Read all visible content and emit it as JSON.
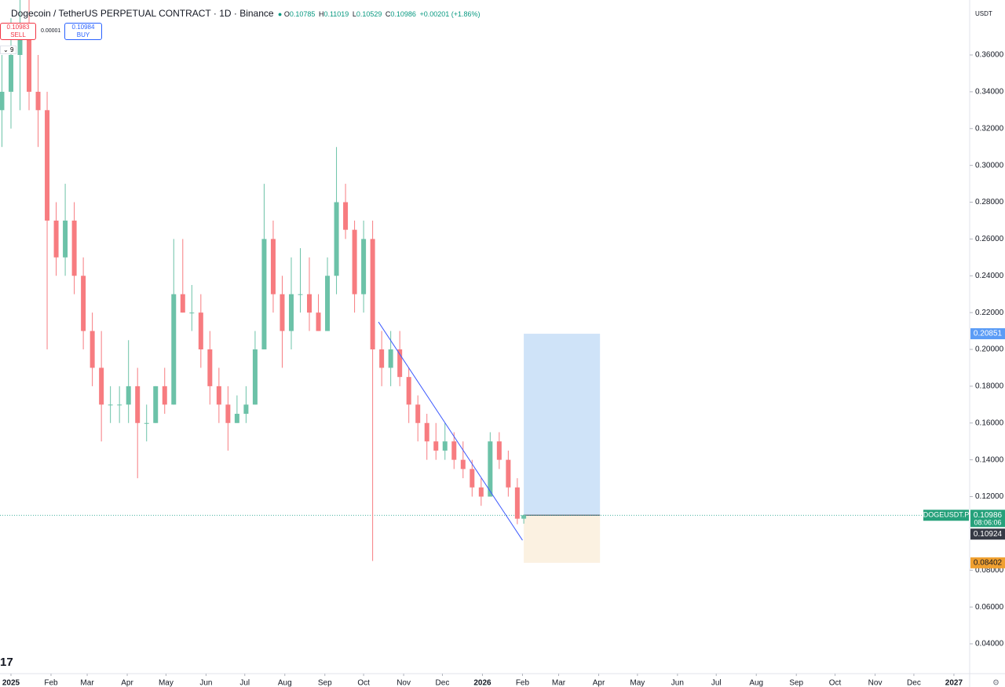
{
  "chart_data": {
    "type": "candlestick",
    "x": [
      -7,
      0,
      7,
      14,
      21,
      28,
      35,
      42,
      49,
      56,
      63,
      70,
      77,
      84,
      91,
      98,
      105,
      112,
      119,
      126,
      133,
      140,
      147,
      154,
      161,
      168,
      175,
      182,
      189,
      196,
      203,
      210,
      217,
      224,
      231,
      238,
      245,
      252,
      259,
      266,
      273,
      280,
      287,
      294,
      301,
      308,
      315,
      322,
      329,
      336,
      343,
      350,
      357,
      364,
      371,
      378,
      385,
      392,
      397
    ],
    "open": [
      0.33,
      0.34,
      0.36,
      0.37,
      0.34,
      0.33,
      0.27,
      0.25,
      0.27,
      0.24,
      0.21,
      0.19,
      0.17,
      0.17,
      0.17,
      0.18,
      0.16,
      0.16,
      0.18,
      0.17,
      0.23,
      0.22,
      0.22,
      0.2,
      0.18,
      0.17,
      0.16,
      0.165,
      0.17,
      0.2,
      0.26,
      0.23,
      0.21,
      0.23,
      0.23,
      0.22,
      0.21,
      0.24,
      0.28,
      0.265,
      0.23,
      0.26,
      0.2,
      0.19,
      0.2,
      0.185,
      0.17,
      0.16,
      0.15,
      0.145,
      0.15,
      0.14,
      0.135,
      0.125,
      0.12,
      0.15,
      0.14,
      0.125,
      0.108
    ],
    "high": [
      0.36,
      0.38,
      0.39,
      0.39,
      0.36,
      0.34,
      0.28,
      0.29,
      0.28,
      0.25,
      0.22,
      0.21,
      0.18,
      0.18,
      0.205,
      0.19,
      0.17,
      0.18,
      0.19,
      0.26,
      0.26,
      0.235,
      0.23,
      0.21,
      0.19,
      0.18,
      0.175,
      0.18,
      0.21,
      0.29,
      0.27,
      0.24,
      0.25,
      0.255,
      0.25,
      0.23,
      0.25,
      0.31,
      0.29,
      0.27,
      0.27,
      0.27,
      0.21,
      0.21,
      0.21,
      0.19,
      0.175,
      0.165,
      0.16,
      0.16,
      0.155,
      0.15,
      0.14,
      0.13,
      0.155,
      0.155,
      0.145,
      0.13,
      0.11019
    ],
    "low": [
      0.31,
      0.32,
      0.33,
      0.33,
      0.31,
      0.2,
      0.24,
      0.24,
      0.23,
      0.2,
      0.18,
      0.15,
      0.16,
      0.16,
      0.16,
      0.13,
      0.15,
      0.16,
      0.165,
      0.17,
      0.22,
      0.21,
      0.19,
      0.17,
      0.16,
      0.145,
      0.16,
      0.16,
      0.17,
      0.2,
      0.22,
      0.19,
      0.2,
      0.22,
      0.21,
      0.21,
      0.21,
      0.23,
      0.26,
      0.22,
      0.22,
      0.085,
      0.18,
      0.18,
      0.18,
      0.16,
      0.15,
      0.14,
      0.14,
      0.14,
      0.135,
      0.13,
      0.12,
      0.115,
      0.12,
      0.135,
      0.12,
      0.105,
      0.10529
    ],
    "close": [
      0.34,
      0.36,
      0.37,
      0.34,
      0.33,
      0.27,
      0.25,
      0.27,
      0.24,
      0.21,
      0.19,
      0.17,
      0.17,
      0.17,
      0.18,
      0.16,
      0.16,
      0.18,
      0.17,
      0.23,
      0.22,
      0.22,
      0.2,
      0.18,
      0.17,
      0.16,
      0.165,
      0.17,
      0.2,
      0.26,
      0.23,
      0.21,
      0.23,
      0.23,
      0.22,
      0.21,
      0.24,
      0.28,
      0.265,
      0.23,
      0.26,
      0.2,
      0.19,
      0.2,
      0.185,
      0.17,
      0.16,
      0.15,
      0.145,
      0.15,
      0.14,
      0.135,
      0.125,
      0.12,
      0.15,
      0.14,
      0.125,
      0.108,
      0.10986
    ],
    "up_color": "#6cc2a8",
    "down_color": "#f77c80",
    "xlim": [
      -8.5,
      742.2
    ],
    "ylim": [
      0.02379,
      0.38987
    ],
    "xticks": [
      {
        "value": 0,
        "label": "2025"
      },
      {
        "value": 31,
        "label": "Feb"
      },
      {
        "value": 59,
        "label": "Mar"
      },
      {
        "value": 90,
        "label": "Apr"
      },
      {
        "value": 120,
        "label": "May"
      },
      {
        "value": 151,
        "label": "Jun"
      },
      {
        "value": 181,
        "label": "Jul"
      },
      {
        "value": 212,
        "label": "Aug"
      },
      {
        "value": 243,
        "label": "Sep"
      },
      {
        "value": 273,
        "label": "Oct"
      },
      {
        "value": 304,
        "label": "Nov"
      },
      {
        "value": 334,
        "label": "Dec"
      },
      {
        "value": 365,
        "label": "2026"
      },
      {
        "value": 396,
        "label": "Feb"
      },
      {
        "value": 424,
        "label": "Mar"
      },
      {
        "value": 455,
        "label": "Apr"
      },
      {
        "value": 485,
        "label": "May"
      },
      {
        "value": 516,
        "label": "Jun"
      },
      {
        "value": 546,
        "label": "Jul"
      },
      {
        "value": 577,
        "label": "Aug"
      },
      {
        "value": 608,
        "label": "Sep"
      },
      {
        "value": 638,
        "label": "Oct"
      },
      {
        "value": 669,
        "label": "Nov"
      },
      {
        "value": 699,
        "label": "Dec"
      },
      {
        "value": 730,
        "label": "2027"
      }
    ],
    "yticks": [
      {
        "value": 0.04,
        "label": "0.04000"
      },
      {
        "value": 0.06,
        "label": "0.06000"
      },
      {
        "value": 0.08,
        "label": "0.08000"
      },
      {
        "value": 0.12,
        "label": "0.12000"
      },
      {
        "value": 0.14,
        "label": "0.14000"
      },
      {
        "value": 0.16,
        "label": "0.16000"
      },
      {
        "value": 0.18,
        "label": "0.18000"
      },
      {
        "value": 0.2,
        "label": "0.20000"
      },
      {
        "value": 0.22,
        "label": "0.22000"
      },
      {
        "value": 0.24,
        "label": "0.24000"
      },
      {
        "value": 0.26,
        "label": "0.26000"
      },
      {
        "value": 0.28,
        "label": "0.28000"
      },
      {
        "value": 0.3,
        "label": "0.30000"
      },
      {
        "value": 0.32,
        "label": "0.32000"
      },
      {
        "value": 0.34,
        "label": "0.34000"
      },
      {
        "value": 0.36,
        "label": "0.36000"
      }
    ],
    "trendline": {
      "x": [
        284.5,
        396
      ],
      "y": [
        0.2149,
        0.0963
      ],
      "color": "#3d5afe"
    },
    "position": {
      "x": [
        397,
        456
      ],
      "entry": 0.10986,
      "target": 0.20851,
      "stop": 0.08402
    },
    "last_price": 0.10986
  },
  "ui": {
    "header": {
      "symbol": "Dogecoin / TetherUS PERPETUAL CONTRACT · 1D · Binance",
      "o_label": "O",
      "o": "0.10785",
      "h_label": "H",
      "h": "0.11019",
      "l_label": "L",
      "l": "0.10529",
      "c_label": "C",
      "c": "0.10986",
      "change": "+0.00201 (+1.86%)"
    },
    "trade": {
      "sell_price": "0.10983",
      "sell": "SELL",
      "spread": "0.00001",
      "buy_price": "0.10984",
      "buy": "BUY"
    },
    "indicator_count": "9",
    "currency": "USDT",
    "ticker": "DOGEUSDT.P",
    "countdown": "08:06:06",
    "bid_label": "0.10924"
  }
}
